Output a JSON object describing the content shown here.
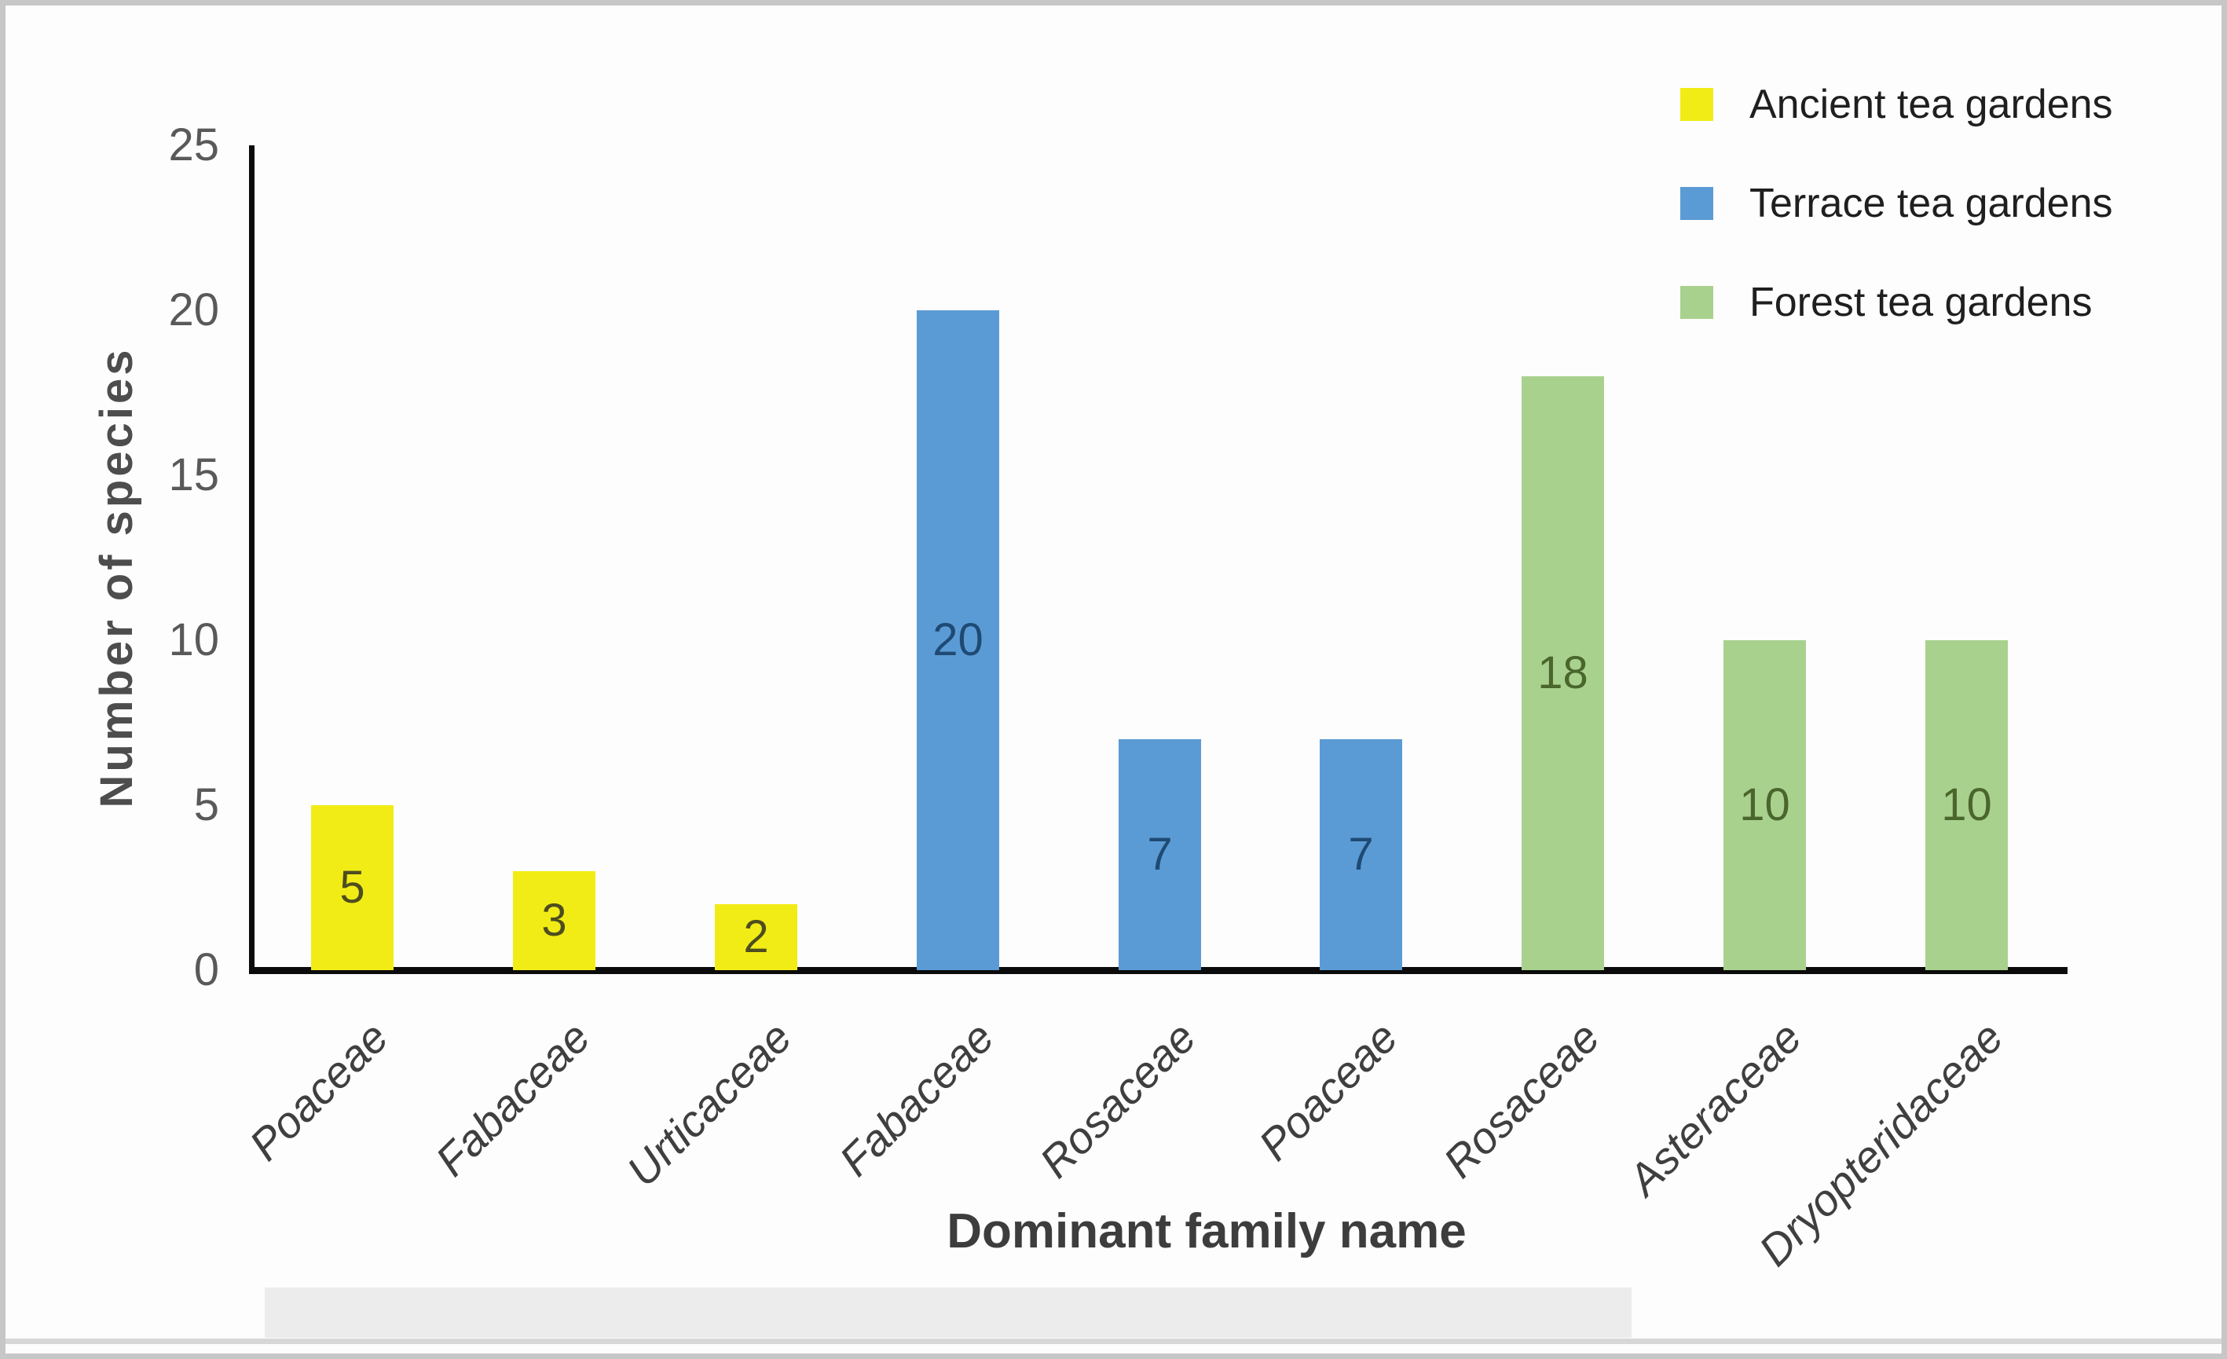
{
  "chart_data": {
    "type": "bar",
    "title": "",
    "xlabel": "Dominant family name",
    "ylabel": "Number of species",
    "ylim": [
      0,
      25
    ],
    "yticks": [
      0,
      5,
      10,
      15,
      20,
      25
    ],
    "grid": false,
    "legend_position": "top-right",
    "bar_label_position": "inside-center",
    "categories": [
      "Poaceae",
      "Fabaceae",
      "Urticaceae",
      "Fabaceae",
      "Rosaceae",
      "Poaceae",
      "Rosaceae",
      "Asteraceae",
      "Dryopteridaceae"
    ],
    "values": [
      5,
      3,
      2,
      20,
      7,
      7,
      18,
      10,
      10
    ],
    "series": [
      {
        "name": "Ancient tea gardens",
        "color": "#f2ec16",
        "value_label_color": "#4d4d1f",
        "indices": [
          0,
          1,
          2
        ]
      },
      {
        "name": "Terrace tea gardens",
        "color": "#5b9bd5",
        "value_label_color": "#1e4a73",
        "indices": [
          3,
          4,
          5
        ]
      },
      {
        "name": "Forest tea gardens",
        "color": "#a9d18e",
        "value_label_color": "#4a662c",
        "indices": [
          6,
          7,
          8
        ]
      }
    ],
    "bars": [
      {
        "category": "Poaceae",
        "value": 5,
        "series": "Ancient tea gardens"
      },
      {
        "category": "Fabaceae",
        "value": 3,
        "series": "Ancient tea gardens"
      },
      {
        "category": "Urticaceae",
        "value": 2,
        "series": "Ancient tea gardens"
      },
      {
        "category": "Fabaceae",
        "value": 20,
        "series": "Terrace tea gardens"
      },
      {
        "category": "Rosaceae",
        "value": 7,
        "series": "Terrace tea gardens"
      },
      {
        "category": "Poaceae",
        "value": 7,
        "series": "Terrace tea gardens"
      },
      {
        "category": "Rosaceae",
        "value": 18,
        "series": "Forest tea gardens"
      },
      {
        "category": "Asteraceae",
        "value": 10,
        "series": "Forest tea gardens"
      },
      {
        "category": "Dryopteridaceae",
        "value": 10,
        "series": "Forest tea gardens"
      }
    ]
  },
  "legend": {
    "items": [
      {
        "label": "Ancient tea gardens",
        "color": "#f2ec16"
      },
      {
        "label": "Terrace tea gardens",
        "color": "#5b9bd5"
      },
      {
        "label": "Forest tea gardens",
        "color": "#a9d18e"
      }
    ]
  },
  "colors": {
    "axis": "#0b0b0b",
    "tick_text": "#595959",
    "axis_title": "#3d3d3d",
    "frame_border": "#c7c7c7"
  }
}
